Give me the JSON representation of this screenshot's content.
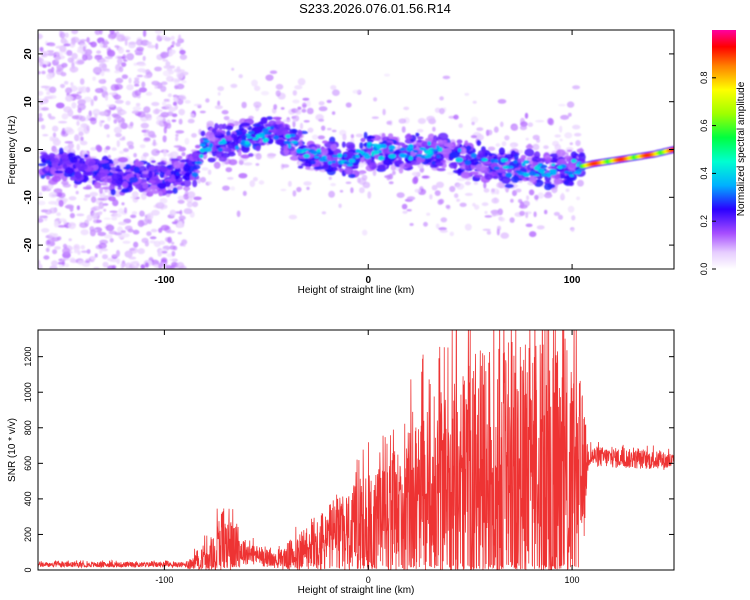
{
  "page_title": "S233.2026.076.01.56.R14",
  "chart_data": [
    {
      "type": "heatmap",
      "name": "spectrogram",
      "xlabel": "Height of straight line (km)",
      "ylabel": "Frequency (Hz)",
      "xlim": [
        -162,
        150
      ],
      "ylim": [
        -25,
        25
      ],
      "xticks": [
        -100,
        0,
        100
      ],
      "yticks": [
        -20,
        -10,
        0,
        10,
        20
      ],
      "colorbar": {
        "label": "Normalized spectral amplitude",
        "range": [
          0,
          1
        ],
        "ticks": [
          0.0,
          0.2,
          0.4,
          0.6,
          0.8
        ],
        "tick_labels": [
          "0.0",
          "0.2",
          "0.4",
          "0.6",
          "0.8"
        ]
      },
      "ridge": [
        {
          "x": -160,
          "y": -3
        },
        {
          "x": -140,
          "y": -4
        },
        {
          "x": -120,
          "y": -6
        },
        {
          "x": -100,
          "y": -6
        },
        {
          "x": -85,
          "y": -4
        },
        {
          "x": -80,
          "y": 1
        },
        {
          "x": -60,
          "y": 2
        },
        {
          "x": -45,
          "y": 4
        },
        {
          "x": -30,
          "y": -1
        },
        {
          "x": -10,
          "y": -2
        },
        {
          "x": 0,
          "y": 0
        },
        {
          "x": 10,
          "y": -1
        },
        {
          "x": 30,
          "y": 0
        },
        {
          "x": 50,
          "y": -2
        },
        {
          "x": 70,
          "y": -4
        },
        {
          "x": 90,
          "y": -4
        },
        {
          "x": 100,
          "y": -4
        },
        {
          "x": 110,
          "y": -3
        },
        {
          "x": 125,
          "y": -2
        },
        {
          "x": 140,
          "y": -1
        },
        {
          "x": 150,
          "y": 0
        }
      ],
      "noise_region": [
        -162,
        -90
      ],
      "strong_tone_region": [
        105,
        150
      ]
    },
    {
      "type": "line",
      "name": "snr",
      "xlabel": "Height of straight line (km)",
      "ylabel": "SNR (10 * v/v)",
      "xlim": [
        -162,
        150
      ],
      "ylim": [
        0,
        1350
      ],
      "xticks": [
        -100,
        0,
        100
      ],
      "yticks": [
        0,
        200,
        400,
        600,
        800,
        1000,
        1200
      ],
      "color": "#ee3333",
      "envelope": [
        {
          "x": -162,
          "base": 30,
          "amp": 15
        },
        {
          "x": -90,
          "base": 30,
          "amp": 15
        },
        {
          "x": -78,
          "base": 60,
          "amp": 120
        },
        {
          "x": -72,
          "base": 150,
          "amp": 200
        },
        {
          "x": -60,
          "base": 100,
          "amp": 70
        },
        {
          "x": -45,
          "base": 50,
          "amp": 40
        },
        {
          "x": -30,
          "base": 120,
          "amp": 150
        },
        {
          "x": -10,
          "base": 200,
          "amp": 250
        },
        {
          "x": 10,
          "base": 280,
          "amp": 350
        },
        {
          "x": 30,
          "base": 400,
          "amp": 550
        },
        {
          "x": 60,
          "base": 500,
          "amp": 800
        },
        {
          "x": 90,
          "base": 480,
          "amp": 800
        },
        {
          "x": 104,
          "base": 450,
          "amp": 650
        },
        {
          "x": 108,
          "base": 640,
          "amp": 60
        },
        {
          "x": 150,
          "base": 610,
          "amp": 50
        }
      ]
    }
  ]
}
